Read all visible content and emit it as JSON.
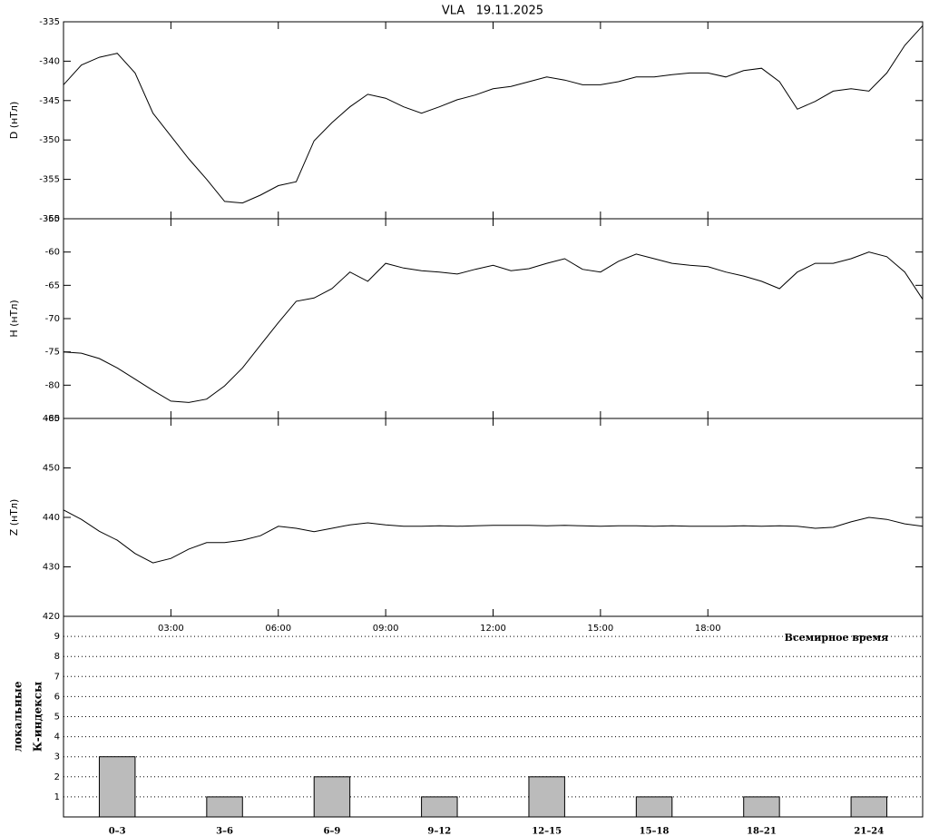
{
  "chart_data": [
    {
      "type": "line",
      "title": "VLA   19.11.2025",
      "y_label": "D (нТл)",
      "xlim": [
        0,
        24
      ],
      "ylim": [
        -360,
        -335
      ],
      "yticks": [
        -360,
        -355,
        -350,
        -345,
        -340,
        -335
      ],
      "x": [
        0,
        0.5,
        1,
        1.5,
        2,
        2.5,
        3,
        3.5,
        4,
        4.5,
        5,
        5.5,
        6,
        6.5,
        7,
        7.5,
        8,
        8.5,
        9,
        9.5,
        10,
        10.5,
        11,
        11.5,
        12,
        12.5,
        13,
        13.5,
        14,
        14.5,
        15,
        15.5,
        16,
        16.5,
        17,
        17.5,
        18,
        18.5,
        19,
        19.5,
        20,
        20.5,
        21,
        21.5,
        22,
        22.5,
        23,
        23.5,
        24
      ],
      "series": [
        {
          "color": "#000000",
          "values": [
            -343.0,
            -340.5,
            -339.5,
            -339.0,
            -341.5,
            -346.6,
            -349.5,
            -352.4,
            -355.0,
            -357.8,
            -358.0,
            -357.0,
            -355.8,
            -355.3,
            -350.1,
            -347.8,
            -345.8,
            -344.2,
            -344.7,
            -345.8,
            -346.6,
            -345.8,
            -344.9,
            -344.3,
            -343.5,
            -343.2,
            -342.6,
            -342.0,
            -342.4,
            -343.0,
            -343.0,
            -342.6,
            -342.0,
            -342.0,
            -341.7,
            -341.5,
            -341.5,
            -342.0,
            -341.2,
            -340.9,
            -342.6,
            -346.1,
            -345.1,
            -343.8,
            -343.5,
            -343.8,
            -341.5,
            -338.0,
            -335.5
          ]
        }
      ]
    },
    {
      "type": "line",
      "y_label": "H (нТл)",
      "xlim": [
        0,
        24
      ],
      "ylim": [
        -85,
        -55
      ],
      "yticks": [
        -85,
        -80,
        -75,
        -70,
        -65,
        -60,
        -55
      ],
      "x": [
        0,
        0.5,
        1,
        1.5,
        2,
        2.5,
        3,
        3.5,
        4,
        4.5,
        5,
        5.5,
        6,
        6.5,
        7,
        7.5,
        8,
        8.5,
        9,
        9.5,
        10,
        10.5,
        11,
        11.5,
        12,
        12.5,
        13,
        13.5,
        14,
        14.5,
        15,
        15.5,
        16,
        16.5,
        17,
        17.5,
        18,
        18.5,
        19,
        19.5,
        20,
        20.5,
        21,
        21.5,
        22,
        22.5,
        23,
        23.5,
        24
      ],
      "series": [
        {
          "color": "#000000",
          "values": [
            -75.0,
            -75.2,
            -76.0,
            -77.4,
            -79.1,
            -80.8,
            -82.4,
            -82.6,
            -82.1,
            -80.1,
            -77.4,
            -74.0,
            -70.6,
            -67.4,
            -66.9,
            -65.5,
            -63.0,
            -64.4,
            -61.7,
            -62.4,
            -62.8,
            -63.0,
            -63.3,
            -62.6,
            -62.0,
            -62.8,
            -62.5,
            -61.7,
            -61.0,
            -62.6,
            -63.0,
            -61.4,
            -60.3,
            -61.0,
            -61.7,
            -62.0,
            -62.2,
            -63.0,
            -63.6,
            -64.4,
            -65.5,
            -63.0,
            -61.7,
            -61.7,
            -61.0,
            -60.0,
            -60.7,
            -63.0,
            -67.1
          ]
        }
      ]
    },
    {
      "type": "line",
      "y_label": "Z (нТл)",
      "xlim": [
        0,
        24
      ],
      "ylim": [
        420,
        460
      ],
      "yticks": [
        420,
        430,
        440,
        450,
        460
      ],
      "xticks": [
        {
          "value": 3,
          "label": "03:00"
        },
        {
          "value": 6,
          "label": "06:00"
        },
        {
          "value": 9,
          "label": "09:00"
        },
        {
          "value": 12,
          "label": "12:00"
        },
        {
          "value": 15,
          "label": "15:00"
        },
        {
          "value": 18,
          "label": "18:00"
        }
      ],
      "x": [
        0,
        0.5,
        1,
        1.5,
        2,
        2.5,
        3,
        3.5,
        4,
        4.5,
        5,
        5.5,
        6,
        6.5,
        7,
        7.5,
        8,
        8.5,
        9,
        9.5,
        10,
        10.5,
        11,
        11.5,
        12,
        12.5,
        13,
        13.5,
        14,
        14.5,
        15,
        15.5,
        16,
        16.5,
        17,
        17.5,
        18,
        18.5,
        19,
        19.5,
        20,
        20.5,
        21,
        21.5,
        22,
        22.5,
        23,
        23.5,
        24
      ],
      "series": [
        {
          "color": "#000000",
          "values": [
            441.5,
            439.6,
            437.2,
            435.4,
            432.7,
            430.8,
            431.7,
            433.6,
            434.9,
            434.9,
            435.4,
            436.3,
            438.2,
            437.8,
            437.1,
            437.8,
            438.5,
            438.9,
            438.5,
            438.2,
            438.2,
            438.3,
            438.2,
            438.3,
            438.4,
            438.4,
            438.4,
            438.3,
            438.4,
            438.3,
            438.2,
            438.3,
            438.3,
            438.2,
            438.3,
            438.2,
            438.2,
            438.2,
            438.3,
            438.2,
            438.3,
            438.2,
            437.8,
            438.0,
            439.1,
            440.0,
            439.6,
            438.7,
            438.2
          ]
        }
      ]
    },
    {
      "type": "bar",
      "y_label": [
        "локальные",
        "К-индексы"
      ],
      "annotation": "Всемирное время",
      "ylim": [
        0,
        10
      ],
      "yticks": [
        1,
        2,
        3,
        4,
        5,
        6,
        7,
        8,
        9
      ],
      "grid": true,
      "color": "#bbbbbb",
      "categories": [
        "0–3",
        "3–6",
        "6–9",
        "9–12",
        "12–15",
        "15–18",
        "18–21",
        "21–24"
      ],
      "values": [
        3,
        1,
        2,
        1,
        2,
        1,
        1,
        1
      ]
    }
  ]
}
